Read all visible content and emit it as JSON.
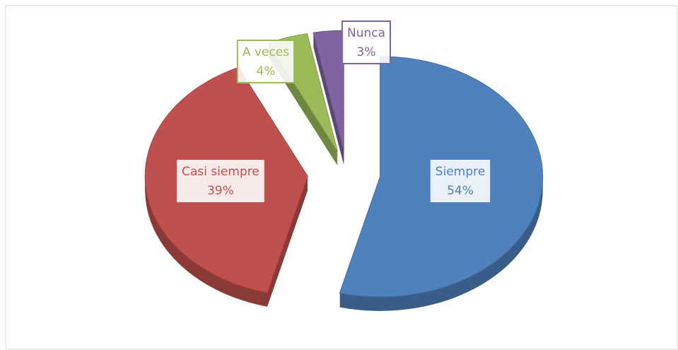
{
  "chart_data": {
    "type": "pie",
    "categories": [
      "Siempre",
      "Casi siempre",
      "A veces",
      "Nunca"
    ],
    "values": [
      54,
      39,
      4,
      3
    ],
    "value_labels": [
      "54%",
      "39%",
      "4%",
      "3%"
    ],
    "colors": [
      "#4f81bd",
      "#c0504d",
      "#9bbb59",
      "#8064a2"
    ],
    "legend": false
  }
}
